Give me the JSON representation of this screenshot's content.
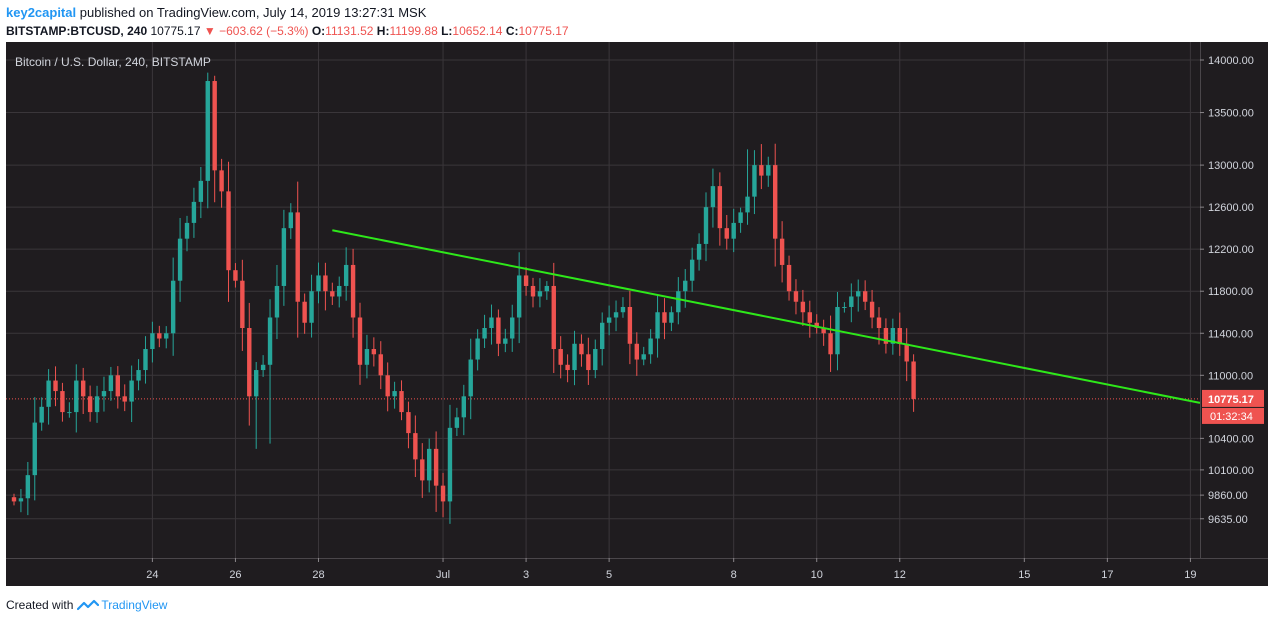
{
  "header": {
    "author": "key2capital",
    "published_text": "published on TradingView.com, July 14, 2019 13:27:31 MSK",
    "symbol": "BITSTAMP:BTCUSD, 240",
    "last": "10775.17",
    "change": "▼ −603.62 (−5.3%)",
    "o_label": "O:",
    "o_value": "11131.52",
    "h_label": "H:",
    "h_value": "11199.88",
    "l_label": "L:",
    "l_value": "10652.14",
    "c_label": "C:",
    "c_value": "10775.17"
  },
  "footer": {
    "created_with": "Created with",
    "brand": "TradingView",
    "logo_icon": "tradingview-logo-icon"
  },
  "colors": {
    "background": "#1f1c1f",
    "grid": "#3a363a",
    "bull": "#26a69a",
    "bear": "#ef5350",
    "trendline": "#2ee81a",
    "axis_text": "#d1d4dc",
    "price_label": "#ef5350"
  },
  "chart_data": {
    "type": "candlestick",
    "title": "Bitcoin / U.S. Dollar, 240, BITSTAMP",
    "ylim": [
      9400,
      14100
    ],
    "y_ticks": [
      "14000.00",
      "13500.00",
      "13000.00",
      "12600.00",
      "12200.00",
      "11800.00",
      "11400.00",
      "11000.00",
      "10400.00",
      "10100.00",
      "9860.00",
      "9635.00"
    ],
    "x_ticks": [
      {
        "label": "24",
        "t": 20
      },
      {
        "label": "26",
        "t": 32
      },
      {
        "label": "28",
        "t": 44
      },
      {
        "label": "Jul",
        "t": 62
      },
      {
        "label": "3",
        "t": 74
      },
      {
        "label": "5",
        "t": 86
      },
      {
        "label": "8",
        "t": 104
      },
      {
        "label": "10",
        "t": 116
      },
      {
        "label": "12",
        "t": 128
      },
      {
        "label": "15",
        "t": 146
      },
      {
        "label": "17",
        "t": 158
      },
      {
        "label": "19",
        "t": 170
      }
    ],
    "last_price": "10775.17",
    "countdown": "01:32:34",
    "trendline": {
      "from_t": 46,
      "from_price": 12380,
      "to_t": 175,
      "to_price": 10690
    },
    "closes": [
      9800,
      9830,
      10050,
      10550,
      10700,
      10950,
      10850,
      10650,
      10650,
      10950,
      10800,
      10650,
      10800,
      10850,
      11000,
      10800,
      10750,
      10950,
      11050,
      11250,
      11400,
      11350,
      11400,
      11900,
      12300,
      12450,
      12650,
      12850,
      13800,
      12950,
      12750,
      12000,
      11900,
      11450,
      10800,
      11050,
      11100,
      11550,
      11850,
      12400,
      12550,
      11700,
      11500,
      11800,
      11950,
      11800,
      11750,
      11850,
      12050,
      11550,
      11100,
      11250,
      11200,
      11000,
      10800,
      10850,
      10650,
      10450,
      10200,
      10000,
      10300,
      9950,
      9800,
      10500,
      10600,
      10800,
      11150,
      11350,
      11450,
      11550,
      11300,
      11350,
      11550,
      11950,
      11850,
      11750,
      11800,
      11850,
      11250,
      11100,
      11050,
      11300,
      11200,
      11050,
      11250,
      11500,
      11550,
      11600,
      11650,
      11300,
      11150,
      11200,
      11350,
      11600,
      11500,
      11600,
      11800,
      11900,
      12100,
      12250,
      12600,
      12800,
      12400,
      12300,
      12450,
      12550,
      12700,
      13000,
      12900,
      13000,
      12300,
      12050,
      11800,
      11700,
      11600,
      11500,
      11450,
      11400,
      11200,
      11650,
      11650,
      11750,
      11800,
      11700,
      11550,
      11450,
      11300,
      11450,
      11300,
      11131.52,
      10775.17
    ]
  }
}
